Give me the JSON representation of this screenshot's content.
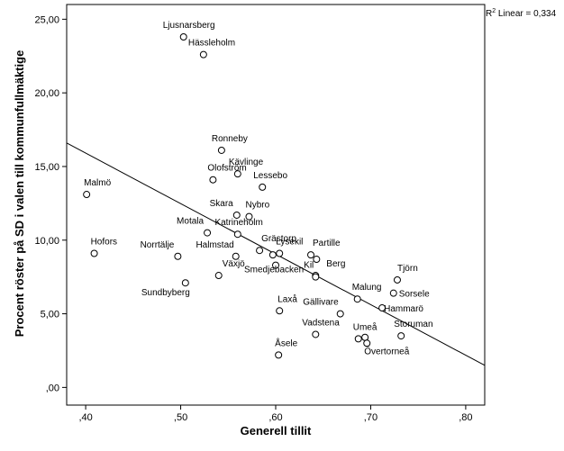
{
  "chart_data": {
    "type": "scatter",
    "xlabel": "Generell tillit",
    "ylabel": "Procent röster på SD i valen till kommunfullmäktige",
    "xlim": [
      0.38,
      0.82
    ],
    "ylim": [
      -1.2,
      26.0
    ],
    "x_ticks": [
      {
        "value": 0.4,
        "label": ",40"
      },
      {
        "value": 0.5,
        "label": ",50"
      },
      {
        "value": 0.6,
        "label": ",60"
      },
      {
        "value": 0.7,
        "label": ",70"
      },
      {
        "value": 0.8,
        "label": ",80"
      }
    ],
    "y_ticks": [
      {
        "value": 0,
        "label": ",00"
      },
      {
        "value": 5,
        "label": "5,00"
      },
      {
        "value": 10,
        "label": "10,00"
      },
      {
        "value": 15,
        "label": "15,00"
      },
      {
        "value": 20,
        "label": "20,00"
      },
      {
        "value": 25,
        "label": "25,00"
      }
    ],
    "r2_label": "R",
    "r2_sup": "2",
    "r2_text": " Linear = 0,334",
    "fit_line": {
      "x1": 0.38,
      "y1": 16.6,
      "x2": 0.82,
      "y2": 1.5
    },
    "points": [
      {
        "label": "Ljusnarsberg",
        "x": 0.503,
        "y": 23.8
      },
      {
        "label": "Hässleholm",
        "x": 0.524,
        "y": 22.6
      },
      {
        "label": "Ronneby",
        "x": 0.543,
        "y": 16.1
      },
      {
        "label": "Kävlinge",
        "x": 0.56,
        "y": 14.5
      },
      {
        "label": "Olofström",
        "x": 0.534,
        "y": 14.1
      },
      {
        "label": "Lessebo",
        "x": 0.586,
        "y": 13.6
      },
      {
        "label": "Malmö",
        "x": 0.401,
        "y": 13.1
      },
      {
        "label": "Skara",
        "x": 0.559,
        "y": 11.7
      },
      {
        "label": "Nybro",
        "x": 0.572,
        "y": 11.6
      },
      {
        "label": "Motala",
        "x": 0.528,
        "y": 10.5
      },
      {
        "label": "Katrineholm",
        "x": 0.56,
        "y": 10.4
      },
      {
        "label": "Grästorp",
        "x": 0.583,
        "y": 9.3
      },
      {
        "label": "Lysekil",
        "x": 0.604,
        "y": 9.1
      },
      {
        "label": "",
        "x": 0.597,
        "y": 9.0
      },
      {
        "label": "Partille",
        "x": 0.637,
        "y": 9.0
      },
      {
        "label": "",
        "x": 0.643,
        "y": 8.7
      },
      {
        "label": "Hofors",
        "x": 0.409,
        "y": 9.1
      },
      {
        "label": "Norrtälje",
        "x": 0.497,
        "y": 8.9
      },
      {
        "label": "Halmstad",
        "x": 0.558,
        "y": 8.9
      },
      {
        "label": "Smedjebacken",
        "x": 0.6,
        "y": 8.3
      },
      {
        "label": "Berg",
        "x": 0.642,
        "y": 7.6
      },
      {
        "label": "Kil",
        "x": 0.642,
        "y": 7.5
      },
      {
        "label": "Växjö",
        "x": 0.54,
        "y": 7.6
      },
      {
        "label": "Sundbyberg",
        "x": 0.505,
        "y": 7.1
      },
      {
        "label": "Tjörn",
        "x": 0.728,
        "y": 7.3
      },
      {
        "label": "Sorsele",
        "x": 0.724,
        "y": 6.4
      },
      {
        "label": "Malung",
        "x": 0.686,
        "y": 6.0
      },
      {
        "label": "Hammarö",
        "x": 0.712,
        "y": 5.4
      },
      {
        "label": "Laxå",
        "x": 0.604,
        "y": 5.2
      },
      {
        "label": "Gällivare",
        "x": 0.668,
        "y": 5.0
      },
      {
        "label": "Vadstena",
        "x": 0.642,
        "y": 3.6
      },
      {
        "label": "Umeå",
        "x": 0.687,
        "y": 3.3
      },
      {
        "label": "",
        "x": 0.694,
        "y": 3.4
      },
      {
        "label": "Storuman",
        "x": 0.732,
        "y": 3.5
      },
      {
        "label": "Övertorneå",
        "x": 0.696,
        "y": 3.0
      },
      {
        "label": "Åsele",
        "x": 0.603,
        "y": 2.2
      }
    ]
  }
}
